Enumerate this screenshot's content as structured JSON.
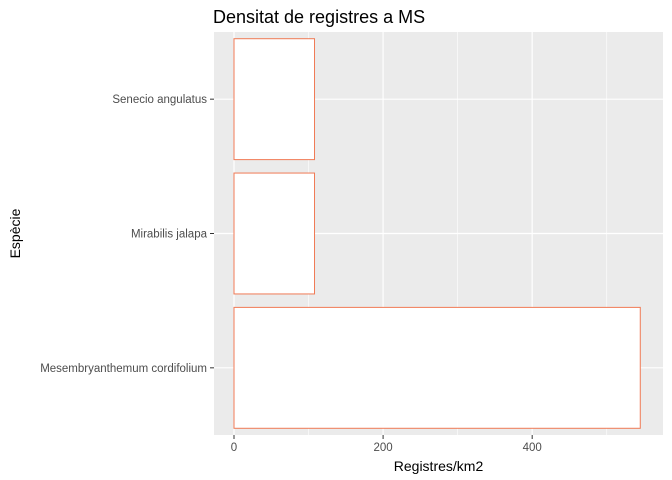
{
  "chart_data": {
    "type": "bar",
    "orientation": "horizontal",
    "title": "Densitat de registres a MS",
    "xlabel": "Registres/km2",
    "ylabel": "Espècie",
    "categories": [
      "Mesembryanthemum cordifolium",
      "Mirabilis jalapa",
      "Senecio angulatus"
    ],
    "values": [
      545,
      108,
      108
    ],
    "xlim": [
      0,
      550
    ],
    "xticks": [
      0,
      200,
      400
    ],
    "grid": true,
    "legend": "none",
    "colors": {
      "panel": "#EBEBEB",
      "grid": "#FFFFFF",
      "bar_fill": "#FFFFFF",
      "bar_outline": "#F07A55",
      "tick": "#333333"
    }
  }
}
